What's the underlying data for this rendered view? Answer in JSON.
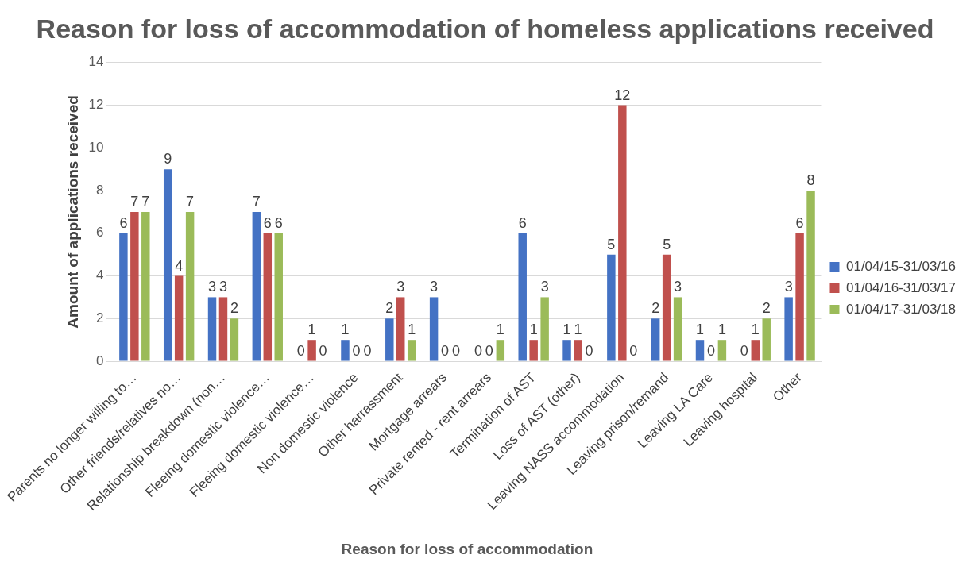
{
  "chart_data": {
    "type": "bar",
    "title": "Reason for loss of accommodation of homeless applications received",
    "xlabel": "Reason for loss of accommodation",
    "ylabel": "Amount of applications received",
    "categories": [
      "Parents no longer willing to…",
      "Other friends/relatives no…",
      "Relationship breakdown (non…",
      "Fleeing domestic violence…",
      "Fleeing domestic violence…",
      "Non domestic violence",
      "Other harrassment",
      "Mortgage arrears",
      "Private rented - rent arrears",
      "Termination of AST",
      "Loss of AST (other)",
      "Leaving NASS accommodation",
      "Leaving prison/remand",
      "Leaving LA Care",
      "Leaving hospital",
      "Other"
    ],
    "series": [
      {
        "name": "01/04/15-31/03/16",
        "color": "#4472c4",
        "values": [
          6,
          9,
          3,
          7,
          0,
          1,
          2,
          3,
          0,
          6,
          1,
          5,
          2,
          1,
          0,
          3
        ]
      },
      {
        "name": "01/04/16-31/03/17",
        "color": "#c0504d",
        "values": [
          7,
          4,
          3,
          6,
          1,
          0,
          3,
          0,
          0,
          1,
          1,
          12,
          5,
          0,
          1,
          6
        ]
      },
      {
        "name": "01/04/17-31/03/18",
        "color": "#9bbb59",
        "values": [
          7,
          7,
          2,
          6,
          0,
          0,
          1,
          0,
          1,
          3,
          0,
          0,
          3,
          1,
          2,
          8
        ]
      }
    ],
    "ylim": [
      0,
      14
    ],
    "yticks": [
      0,
      2,
      4,
      6,
      8,
      10,
      12,
      14
    ],
    "grid": "y",
    "legend": "right",
    "data_labels": true
  }
}
